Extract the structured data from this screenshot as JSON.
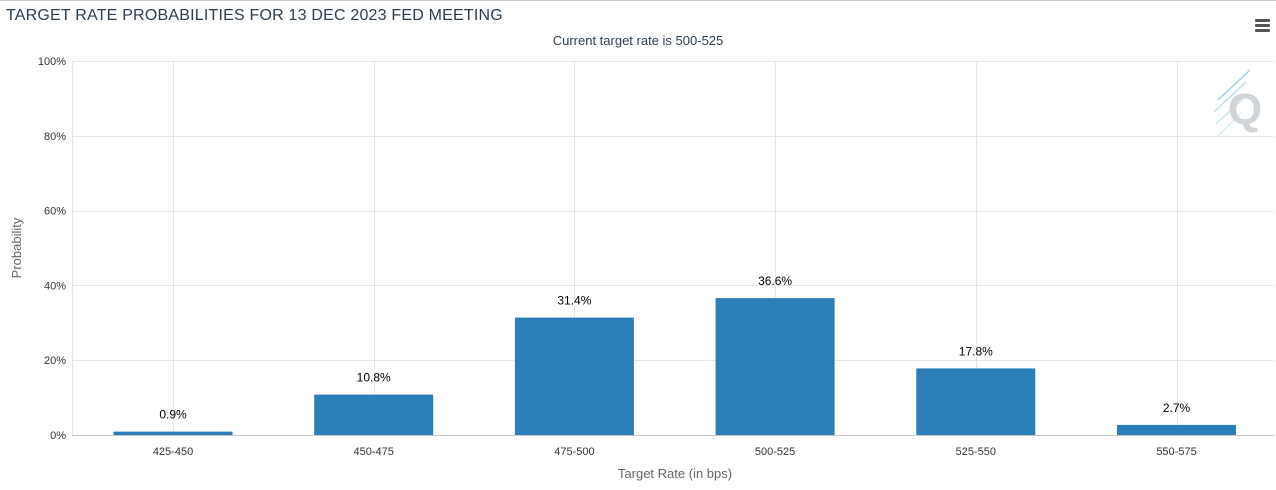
{
  "header": {
    "title": "TARGET RATE PROBABILITIES FOR 13 DEC 2023 FED MEETING",
    "subtitle": "Current target rate is 500-525",
    "menu_icon": "hamburger-menu-icon",
    "watermark_icon": "q-logo-icon"
  },
  "chart_data": {
    "type": "bar",
    "title": "TARGET RATE PROBABILITIES FOR 13 DEC 2023 FED MEETING",
    "subtitle": "Current target rate is 500-525",
    "categories": [
      "425-450",
      "450-475",
      "475-500",
      "500-525",
      "525-550",
      "550-575"
    ],
    "values": [
      0.9,
      10.8,
      31.4,
      36.6,
      17.8,
      2.7
    ],
    "data_labels": [
      "0.9%",
      "10.8%",
      "31.4%",
      "36.6%",
      "17.8%",
      "2.7%"
    ],
    "xlabel": "Target Rate (in bps)",
    "ylabel": "Probability",
    "ylim": [
      0,
      100
    ],
    "yticks": [
      0,
      20,
      40,
      60,
      80,
      100
    ],
    "ytick_labels": [
      "0%",
      "20%",
      "40%",
      "60%",
      "80%",
      "100%"
    ],
    "grid": true,
    "legend": "none",
    "bar_color": "#2a7fb8"
  }
}
